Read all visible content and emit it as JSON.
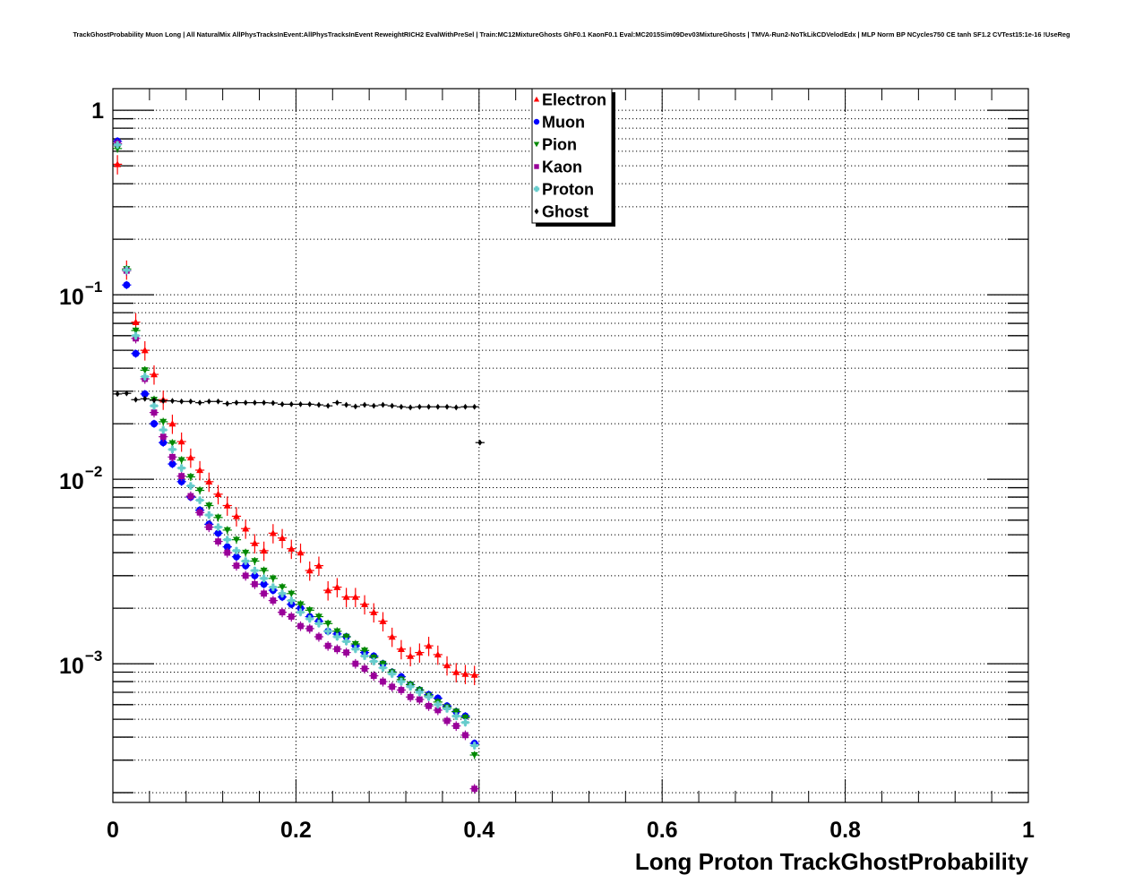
{
  "chart_data": {
    "type": "scatter",
    "title": "TrackGhostProbability Muon Long | All NaturalMix AllPhysTracksInEvent:AllPhysTracksInEvent ReweightRICH2 EvalWithPreSel | Train:MC12MixtureGhosts GhF0.1 KaonF0.1 Eval:MC2015Sim09Dev03MixtureGhosts | TMVA-Run2-NoTkLikCDVelodEdx | MLP Norm BP NCycles750 CE tanh SF1.2 CVTest15:1e-16 !UseReg",
    "xlabel": "Long Proton TrackGhostProbability",
    "ylabel": "",
    "xlim": [
      0,
      1
    ],
    "ylim": [
      0.000177,
      1.31
    ],
    "yscale": "log",
    "grid": true,
    "legend_position": "top-center",
    "x_ticks": [
      {
        "value": 0,
        "label": "0"
      },
      {
        "value": 0.2,
        "label": "0.2"
      },
      {
        "value": 0.4,
        "label": "0.4"
      },
      {
        "value": 0.6,
        "label": "0.6"
      },
      {
        "value": 0.8,
        "label": "0.8"
      },
      {
        "value": 1,
        "label": "1"
      }
    ],
    "y_ticks": [
      {
        "value": 1,
        "label": "1",
        "exp": ""
      },
      {
        "value": 0.1,
        "label": "10",
        "exp": "−1"
      },
      {
        "value": 0.01,
        "label": "10",
        "exp": "−2"
      },
      {
        "value": 0.001,
        "label": "10",
        "exp": "−3"
      }
    ],
    "bin_width": 0.01,
    "series": [
      {
        "name": "Electron",
        "color": "#ff0000",
        "marker": "triangle-up",
        "x": [
          0.005,
          0.015,
          0.025,
          0.035,
          0.045,
          0.055,
          0.065,
          0.075,
          0.085,
          0.095,
          0.105,
          0.115,
          0.125,
          0.135,
          0.145,
          0.155,
          0.165,
          0.175,
          0.185,
          0.195,
          0.205,
          0.215,
          0.225,
          0.235,
          0.245,
          0.255,
          0.265,
          0.275,
          0.285,
          0.295,
          0.305,
          0.315,
          0.325,
          0.335,
          0.345,
          0.355,
          0.365,
          0.375,
          0.385,
          0.395
        ],
        "y": [
          0.51,
          0.137,
          0.071,
          0.05,
          0.037,
          0.027,
          0.02,
          0.016,
          0.0131,
          0.0112,
          0.0097,
          0.0083,
          0.0072,
          0.0063,
          0.0054,
          0.0045,
          0.0041,
          0.0051,
          0.0048,
          0.0042,
          0.004,
          0.0032,
          0.0034,
          0.0025,
          0.0026,
          0.0023,
          0.0023,
          0.0021,
          0.0019,
          0.0017,
          0.0014,
          0.0012,
          0.0011,
          0.00115,
          0.00125,
          0.00112,
          0.00098,
          0.0009,
          0.00088,
          0.00087
        ],
        "yerr_rel": 0.12
      },
      {
        "name": "Muon",
        "color": "#0000ff",
        "marker": "circle",
        "x": [
          0.005,
          0.015,
          0.025,
          0.035,
          0.045,
          0.055,
          0.065,
          0.075,
          0.085,
          0.095,
          0.105,
          0.115,
          0.125,
          0.135,
          0.145,
          0.155,
          0.165,
          0.175,
          0.185,
          0.195,
          0.205,
          0.215,
          0.225,
          0.235,
          0.245,
          0.255,
          0.265,
          0.275,
          0.285,
          0.295,
          0.305,
          0.315,
          0.325,
          0.335,
          0.345,
          0.355,
          0.365,
          0.375,
          0.385,
          0.395
        ],
        "y": [
          0.68,
          0.113,
          0.048,
          0.029,
          0.02,
          0.0158,
          0.0121,
          0.0097,
          0.008,
          0.0068,
          0.0057,
          0.0051,
          0.0043,
          0.0038,
          0.0034,
          0.003,
          0.0027,
          0.0025,
          0.0023,
          0.0021,
          0.002,
          0.0018,
          0.0017,
          0.0015,
          0.00145,
          0.0014,
          0.00125,
          0.00115,
          0.0011,
          0.001,
          0.0009,
          0.00085,
          0.00077,
          0.00072,
          0.00068,
          0.00065,
          0.00059,
          0.00055,
          0.00052,
          0.00037
        ],
        "yerr_rel": 0.05
      },
      {
        "name": "Pion",
        "color": "#008800",
        "marker": "triangle-down",
        "x": [
          0.005,
          0.015,
          0.025,
          0.035,
          0.045,
          0.055,
          0.065,
          0.075,
          0.085,
          0.095,
          0.105,
          0.115,
          0.125,
          0.135,
          0.145,
          0.155,
          0.165,
          0.175,
          0.185,
          0.195,
          0.205,
          0.215,
          0.225,
          0.235,
          0.245,
          0.255,
          0.265,
          0.275,
          0.285,
          0.295,
          0.305,
          0.315,
          0.325,
          0.335,
          0.345,
          0.355,
          0.365,
          0.375,
          0.385,
          0.395
        ],
        "y": [
          0.62,
          0.138,
          0.064,
          0.039,
          0.027,
          0.0205,
          0.0157,
          0.0127,
          0.0103,
          0.0087,
          0.0072,
          0.0062,
          0.0053,
          0.0047,
          0.004,
          0.0036,
          0.0032,
          0.0029,
          0.0026,
          0.0024,
          0.0021,
          0.00195,
          0.0018,
          0.00165,
          0.0015,
          0.0014,
          0.00128,
          0.00118,
          0.00108,
          0.001,
          0.0009,
          0.00082,
          0.00077,
          0.00072,
          0.00067,
          0.00062,
          0.00058,
          0.00055,
          0.00051,
          0.00032
        ],
        "yerr_rel": 0.05
      },
      {
        "name": "Kaon",
        "color": "#990099",
        "marker": "square",
        "x": [
          0.005,
          0.015,
          0.025,
          0.035,
          0.045,
          0.055,
          0.065,
          0.075,
          0.085,
          0.095,
          0.105,
          0.115,
          0.125,
          0.135,
          0.145,
          0.155,
          0.165,
          0.175,
          0.185,
          0.195,
          0.205,
          0.215,
          0.225,
          0.235,
          0.245,
          0.255,
          0.265,
          0.275,
          0.285,
          0.295,
          0.305,
          0.315,
          0.325,
          0.335,
          0.345,
          0.355,
          0.365,
          0.375,
          0.385,
          0.395
        ],
        "y": [
          0.66,
          0.135,
          0.058,
          0.035,
          0.023,
          0.017,
          0.0132,
          0.0104,
          0.0081,
          0.0066,
          0.0055,
          0.0046,
          0.004,
          0.0034,
          0.003,
          0.0027,
          0.0024,
          0.0022,
          0.0019,
          0.0018,
          0.0016,
          0.00155,
          0.0014,
          0.00125,
          0.0012,
          0.00115,
          0.001,
          0.00094,
          0.00086,
          0.0008,
          0.00075,
          0.00072,
          0.00066,
          0.00064,
          0.00059,
          0.00056,
          0.00049,
          0.00046,
          0.00041,
          0.00021
        ],
        "yerr_rel": 0.06
      },
      {
        "name": "Proton",
        "color": "#66cccc",
        "marker": "cross",
        "x": [
          0.005,
          0.015,
          0.025,
          0.035,
          0.045,
          0.055,
          0.065,
          0.075,
          0.085,
          0.095,
          0.105,
          0.115,
          0.125,
          0.135,
          0.145,
          0.155,
          0.165,
          0.175,
          0.185,
          0.195,
          0.205,
          0.215,
          0.225,
          0.235,
          0.245,
          0.255,
          0.265,
          0.275,
          0.285,
          0.295,
          0.305,
          0.315,
          0.325,
          0.335,
          0.345,
          0.355,
          0.365,
          0.375,
          0.385,
          0.395
        ],
        "y": [
          0.65,
          0.136,
          0.06,
          0.036,
          0.025,
          0.0185,
          0.0145,
          0.0115,
          0.0092,
          0.0077,
          0.0064,
          0.0055,
          0.0047,
          0.0041,
          0.0036,
          0.0032,
          0.0029,
          0.0026,
          0.0024,
          0.0022,
          0.0019,
          0.00175,
          0.00165,
          0.0015,
          0.0014,
          0.00132,
          0.0012,
          0.0011,
          0.00103,
          0.00095,
          0.00088,
          0.0008,
          0.00075,
          0.0007,
          0.00066,
          0.0006,
          0.00057,
          0.00052,
          0.00048,
          0.00036
        ],
        "yerr_rel": 0.05
      },
      {
        "name": "Ghost",
        "color": "#000000",
        "marker": "diamond",
        "x": [
          0.005,
          0.015,
          0.025,
          0.035,
          0.045,
          0.055,
          0.065,
          0.075,
          0.085,
          0.095,
          0.105,
          0.115,
          0.125,
          0.135,
          0.145,
          0.155,
          0.165,
          0.175,
          0.185,
          0.195,
          0.205,
          0.215,
          0.225,
          0.235,
          0.245,
          0.255,
          0.265,
          0.275,
          0.285,
          0.295,
          0.305,
          0.315,
          0.325,
          0.335,
          0.345,
          0.355,
          0.365,
          0.375,
          0.385,
          0.395
        ],
        "y": [
          0.029,
          0.0292,
          0.027,
          0.0273,
          0.0268,
          0.0266,
          0.0266,
          0.0264,
          0.0264,
          0.026,
          0.0264,
          0.0264,
          0.0257,
          0.026,
          0.026,
          0.026,
          0.026,
          0.0259,
          0.0255,
          0.0255,
          0.0255,
          0.0255,
          0.0253,
          0.025,
          0.026,
          0.0253,
          0.0248,
          0.0253,
          0.025,
          0.0253,
          0.025,
          0.0247,
          0.0245,
          0.0247,
          0.0247,
          0.0247,
          0.0247,
          0.0245,
          0.0247,
          0.0247
        ],
        "extra_point": {
          "x": 0.4,
          "y": 0.0158
        },
        "yerr_rel": 0.02
      }
    ]
  }
}
